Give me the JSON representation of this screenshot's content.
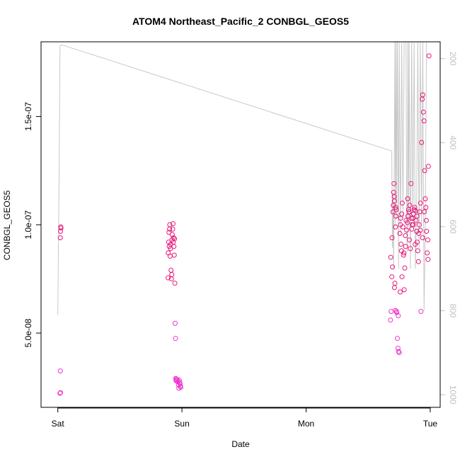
{
  "chart_data": {
    "type": "scatter",
    "title": "ATOM4 Northeast_Pacific_2 CONBGL_GEOS5",
    "xlabel": "Date",
    "ylabel": "CONBGL_GEOS5",
    "x_ticks": [
      {
        "day": 0,
        "label": "Sat"
      },
      {
        "day": 1,
        "label": "Sun"
      },
      {
        "day": 2,
        "label": "Mon"
      },
      {
        "day": 3,
        "label": "Tue"
      }
    ],
    "y_ticks": [
      {
        "value": 5e-08,
        "label": "5.0e-08"
      },
      {
        "value": 1e-07,
        "label": "1.0e-07"
      },
      {
        "value": 1.5e-07,
        "label": "1.5e-07"
      }
    ],
    "y2_ticks": [
      {
        "value": 200,
        "label": "200"
      },
      {
        "value": 400,
        "label": "400"
      },
      {
        "value": 600,
        "label": "600"
      },
      {
        "value": 800,
        "label": "800"
      },
      {
        "value": 1000,
        "label": "1000"
      }
    ],
    "xlim": [
      -0.135,
      3.08
    ],
    "ylim": [
      1.57e-08,
      1.845e-07
    ],
    "y2lim": [
      1030,
      160
    ],
    "y2_reversed": true,
    "colors": {
      "points": "#e8177a",
      "points_alt": "#ee33cc",
      "pressure_line": "#c8c8c8",
      "axis": "#000000",
      "right_axis": "#c0c0c0"
    },
    "series": [
      {
        "role": "points",
        "marker": "open-circle",
        "x": [
          0.02,
          0.022,
          0.024,
          0.026,
          0.018,
          0.022,
          0.02,
          0.888,
          0.89,
          0.893,
          0.895,
          0.898,
          0.9,
          0.902,
          0.905,
          0.908,
          0.91,
          0.912,
          0.915,
          0.918,
          0.92,
          0.922,
          0.925,
          0.928,
          0.93,
          0.932,
          0.935,
          0.938,
          0.94,
          0.943,
          0.945,
          0.948,
          0.95,
          0.952,
          0.955,
          0.958,
          0.962,
          0.968,
          0.972,
          0.975,
          0.978,
          0.982,
          0.985,
          0.988,
          0.99,
          2.68,
          2.685,
          2.69,
          2.695,
          2.7,
          2.702,
          2.705,
          2.708,
          2.71,
          2.712,
          2.715,
          2.718,
          2.72,
          2.723,
          2.725,
          2.728,
          2.73,
          2.735,
          2.74,
          2.745,
          2.75,
          2.755,
          2.76,
          2.762,
          2.765,
          2.768,
          2.77,
          2.775,
          2.78,
          2.785,
          2.79,
          2.795,
          2.8,
          2.805,
          2.81,
          2.815,
          2.82,
          2.825,
          2.83,
          2.835,
          2.84,
          2.845,
          2.85,
          2.855,
          2.86,
          2.865,
          2.87,
          2.875,
          2.88,
          2.885,
          2.89,
          2.895,
          2.9,
          2.905,
          2.91,
          2.915,
          2.92,
          2.925,
          2.93,
          2.935,
          2.94,
          2.945,
          2.95,
          2.955,
          2.96,
          2.965,
          2.97,
          2.975,
          2.98,
          2.985,
          2.99,
          2.682,
          2.692,
          2.712,
          2.722,
          2.742,
          2.758,
          2.772,
          2.788,
          2.802,
          2.818,
          2.832,
          2.848,
          2.862,
          2.878,
          2.892,
          2.908,
          2.922,
          2.938,
          2.952,
          2.968,
          2.982
        ],
        "y": [
          9.4e-08,
          9.7e-08,
          9.9e-08,
          9.85e-08,
          2.22e-08,
          2.25e-08,
          3.25e-08,
          7.55e-08,
          8.7e-08,
          9.2e-08,
          9.65e-08,
          9e-08,
          9.8e-08,
          1e-07,
          8.55e-08,
          8.9e-08,
          9.1e-08,
          7.9e-08,
          7.5e-08,
          7.7e-08,
          9.3e-08,
          9.55e-08,
          9.8e-08,
          1.005e-07,
          9.2e-08,
          9.4e-08,
          9e-08,
          8.6e-08,
          9.35e-08,
          7.3e-08,
          5.45e-08,
          4.75e-08,
          2.9e-08,
          2.8e-08,
          2.88e-08,
          2.78e-08,
          2.85e-08,
          2.75e-08,
          2.6e-08,
          2.45e-08,
          2.82e-08,
          2.72e-08,
          2.65e-08,
          2.55e-08,
          2.5e-08,
          5.6e-08,
          6e-08,
          7.6e-08,
          8.05e-08,
          1.06e-07,
          1.09e-07,
          1.15e-07,
          1.19e-07,
          1.13e-07,
          1.11e-07,
          7.3e-08,
          6.05e-08,
          9.9e-08,
          1.04e-07,
          1.07e-07,
          6e-08,
          5.95e-08,
          4.75e-08,
          4.3e-08,
          4.15e-08,
          4.1e-08,
          9.6e-08,
          1e-07,
          1.03e-07,
          9.1e-08,
          8.8e-08,
          1.05e-07,
          1.1e-07,
          9.9e-08,
          8.6e-08,
          7e-08,
          8e-08,
          9.5e-08,
          1.02e-07,
          9.75e-08,
          1.01e-07,
          1.04e-07,
          1.07e-07,
          1.06e-07,
          1.09e-07,
          8.9e-08,
          1.19e-07,
          9.8e-08,
          1e-07,
          1.03e-07,
          1.05e-07,
          1.07e-07,
          1.08e-07,
          1.065e-07,
          1.02e-07,
          9.7e-08,
          9.2e-08,
          8.8e-08,
          8.3e-08,
          1e-07,
          1.06e-07,
          9.75e-08,
          6e-08,
          1.38e-07,
          1.58e-07,
          1.6e-07,
          1.52e-07,
          1.48e-07,
          1.25e-07,
          1.12e-07,
          1.08e-07,
          9.7e-08,
          8.7e-08,
          9.3e-08,
          1.27e-07,
          1.78e-07,
          8.5e-08,
          9.4e-08,
          7.1e-08,
          1.08e-07,
          5.8e-08,
          6.9e-08,
          7.6e-08,
          8.7e-08,
          9e-08,
          1.12e-07,
          9.3e-08,
          1.03e-07,
          1e-07,
          9.1e-08,
          1.04e-07,
          9.6e-08,
          1.1e-07,
          9.4e-08,
          1.06e-07,
          1.02e-07,
          8.4e-08
        ]
      },
      {
        "role": "pressure_line",
        "axis": "right",
        "x": [
          0.0,
          0.01,
          0.018,
          0.025,
          0.03,
          0.035,
          0.04,
          2.69,
          2.695,
          2.7,
          2.705,
          2.71,
          2.715,
          2.72,
          2.725,
          2.73,
          2.735,
          2.74,
          2.745,
          2.75,
          2.76,
          2.77,
          2.78,
          2.79,
          2.8,
          2.805,
          2.81,
          2.815,
          2.82,
          2.825,
          2.83,
          2.84,
          2.85,
          2.86,
          2.87,
          2.88,
          2.89,
          2.9,
          2.91,
          2.92,
          2.93,
          2.94,
          2.95,
          2.96,
          2.97,
          2.98,
          2.99
        ],
        "y": [
          810,
          500,
          170,
          168,
          168,
          168,
          168,
          420,
          650,
          520,
          700,
          480,
          160,
          600,
          160,
          580,
          160,
          400,
          700,
          160,
          620,
          160,
          580,
          160,
          160,
          160,
          580,
          660,
          160,
          600,
          160,
          700,
          160,
          600,
          160,
          700,
          560,
          160,
          650,
          160,
          600,
          160,
          800,
          600,
          160,
          160,
          160
        ]
      }
    ]
  }
}
